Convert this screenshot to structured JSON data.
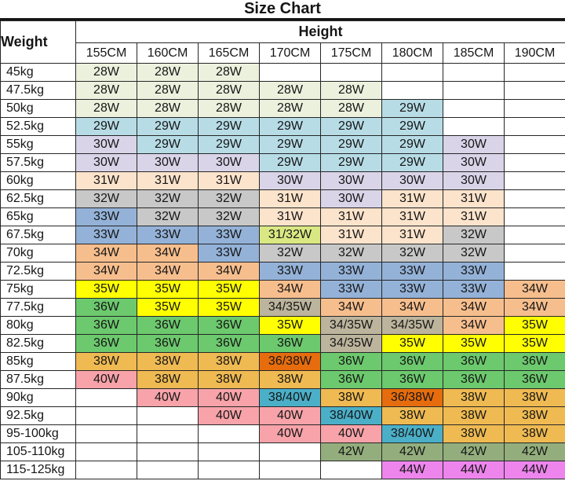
{
  "title": "Size Chart",
  "palette": {
    "cream": "#ECF1DE",
    "lightblue": "#B7DCE6",
    "lavender": "#D9D4E8",
    "peach": "#FCE3CB",
    "gray": "#C8C8C8",
    "steelblue": "#94B2D8",
    "orange": "#F7BE8D",
    "yellow": "#FFFF00",
    "yellowgreen": "#D9E882",
    "tan": "#BCB49C",
    "green": "#6CC96D",
    "gold": "#EFBA52",
    "darkorange": "#E66C0D",
    "pink": "#F7A3A9",
    "teal": "#4BAFC8",
    "sage": "#93AE7C",
    "orchid": "#ED85ED"
  },
  "chart_data": {
    "type": "table",
    "title": "Size Chart",
    "row_header": "Weight",
    "col_group_header": "Height",
    "columns": [
      "155CM",
      "160CM",
      "165CM",
      "170CM",
      "175CM",
      "180CM",
      "185CM",
      "190CM"
    ],
    "rows": [
      {
        "weight": "45kg",
        "cells": [
          {
            "v": "28W",
            "c": "cream"
          },
          {
            "v": "28W",
            "c": "cream"
          },
          {
            "v": "28W",
            "c": "cream"
          },
          null,
          null,
          null,
          null,
          null
        ]
      },
      {
        "weight": "47.5kg",
        "cells": [
          {
            "v": "28W",
            "c": "cream"
          },
          {
            "v": "28W",
            "c": "cream"
          },
          {
            "v": "28W",
            "c": "cream"
          },
          {
            "v": "28W",
            "c": "cream"
          },
          {
            "v": "28W",
            "c": "cream"
          },
          null,
          null,
          null
        ]
      },
      {
        "weight": "50kg",
        "cells": [
          {
            "v": "28W",
            "c": "cream"
          },
          {
            "v": "28W",
            "c": "cream"
          },
          {
            "v": "28W",
            "c": "cream"
          },
          {
            "v": "28W",
            "c": "cream"
          },
          {
            "v": "28W",
            "c": "cream"
          },
          {
            "v": "29W",
            "c": "lightblue"
          },
          null,
          null
        ]
      },
      {
        "weight": "52.5kg",
        "cells": [
          {
            "v": "29W",
            "c": "lightblue"
          },
          {
            "v": "29W",
            "c": "lightblue"
          },
          {
            "v": "29W",
            "c": "lightblue"
          },
          {
            "v": "29W",
            "c": "lightblue"
          },
          {
            "v": "29W",
            "c": "lightblue"
          },
          {
            "v": "29W",
            "c": "lightblue"
          },
          null,
          null
        ]
      },
      {
        "weight": "55kg",
        "cells": [
          {
            "v": "30W",
            "c": "lavender"
          },
          {
            "v": "29W",
            "c": "lightblue"
          },
          {
            "v": "29W",
            "c": "lightblue"
          },
          {
            "v": "29W",
            "c": "lightblue"
          },
          {
            "v": "29W",
            "c": "lightblue"
          },
          {
            "v": "29W",
            "c": "lightblue"
          },
          {
            "v": "30W",
            "c": "lavender"
          },
          null
        ]
      },
      {
        "weight": "57.5kg",
        "cells": [
          {
            "v": "30W",
            "c": "lavender"
          },
          {
            "v": "30W",
            "c": "lavender"
          },
          {
            "v": "30W",
            "c": "lavender"
          },
          {
            "v": "29W",
            "c": "lightblue"
          },
          {
            "v": "29W",
            "c": "lightblue"
          },
          {
            "v": "29W",
            "c": "lightblue"
          },
          {
            "v": "30W",
            "c": "lavender"
          },
          null
        ]
      },
      {
        "weight": "60kg",
        "cells": [
          {
            "v": "31W",
            "c": "peach"
          },
          {
            "v": "31W",
            "c": "peach"
          },
          {
            "v": "31W",
            "c": "peach"
          },
          {
            "v": "30W",
            "c": "lavender"
          },
          {
            "v": "30W",
            "c": "lavender"
          },
          {
            "v": "30W",
            "c": "lavender"
          },
          {
            "v": "30W",
            "c": "lavender"
          },
          null
        ]
      },
      {
        "weight": "62.5kg",
        "cells": [
          {
            "v": "32W",
            "c": "gray"
          },
          {
            "v": "32W",
            "c": "gray"
          },
          {
            "v": "32W",
            "c": "gray"
          },
          {
            "v": "31W",
            "c": "peach"
          },
          {
            "v": "30W",
            "c": "lavender"
          },
          {
            "v": "31W",
            "c": "peach"
          },
          {
            "v": "31W",
            "c": "peach"
          },
          null
        ]
      },
      {
        "weight": "65kg",
        "cells": [
          {
            "v": "33W",
            "c": "steelblue"
          },
          {
            "v": "32W",
            "c": "gray"
          },
          {
            "v": "32W",
            "c": "gray"
          },
          {
            "v": "31W",
            "c": "peach"
          },
          {
            "v": "31W",
            "c": "peach"
          },
          {
            "v": "31W",
            "c": "peach"
          },
          {
            "v": "31W",
            "c": "peach"
          },
          null
        ]
      },
      {
        "weight": "67.5kg",
        "cells": [
          {
            "v": "33W",
            "c": "steelblue"
          },
          {
            "v": "33W",
            "c": "steelblue"
          },
          {
            "v": "33W",
            "c": "steelblue"
          },
          {
            "v": "31/32W",
            "c": "yellowgreen"
          },
          {
            "v": "31W",
            "c": "peach"
          },
          {
            "v": "31W",
            "c": "peach"
          },
          {
            "v": "32W",
            "c": "gray"
          },
          null
        ]
      },
      {
        "weight": "70kg",
        "cells": [
          {
            "v": "34W",
            "c": "orange"
          },
          {
            "v": "34W",
            "c": "orange"
          },
          {
            "v": "33W",
            "c": "steelblue"
          },
          {
            "v": "32W",
            "c": "gray"
          },
          {
            "v": "32W",
            "c": "gray"
          },
          {
            "v": "32W",
            "c": "gray"
          },
          {
            "v": "32W",
            "c": "gray"
          },
          null
        ]
      },
      {
        "weight": "72.5kg",
        "cells": [
          {
            "v": "34W",
            "c": "orange"
          },
          {
            "v": "34W",
            "c": "orange"
          },
          {
            "v": "34W",
            "c": "orange"
          },
          {
            "v": "33W",
            "c": "steelblue"
          },
          {
            "v": "33W",
            "c": "steelblue"
          },
          {
            "v": "33W",
            "c": "steelblue"
          },
          {
            "v": "33W",
            "c": "steelblue"
          },
          null
        ]
      },
      {
        "weight": "75kg",
        "cells": [
          {
            "v": "35W",
            "c": "yellow"
          },
          {
            "v": "35W",
            "c": "yellow"
          },
          {
            "v": "35W",
            "c": "yellow"
          },
          {
            "v": "34W",
            "c": "orange"
          },
          {
            "v": "33W",
            "c": "steelblue"
          },
          {
            "v": "33W",
            "c": "steelblue"
          },
          {
            "v": "33W",
            "c": "steelblue"
          },
          {
            "v": "34W",
            "c": "orange"
          }
        ]
      },
      {
        "weight": "77.5kg",
        "cells": [
          {
            "v": "36W",
            "c": "green"
          },
          {
            "v": "35W",
            "c": "yellow"
          },
          {
            "v": "35W",
            "c": "yellow"
          },
          {
            "v": "34/35W",
            "c": "tan"
          },
          {
            "v": "34W",
            "c": "orange"
          },
          {
            "v": "34W",
            "c": "orange"
          },
          {
            "v": "34W",
            "c": "orange"
          },
          {
            "v": "34W",
            "c": "orange"
          }
        ]
      },
      {
        "weight": "80kg",
        "cells": [
          {
            "v": "36W",
            "c": "green"
          },
          {
            "v": "36W",
            "c": "green"
          },
          {
            "v": "36W",
            "c": "green"
          },
          {
            "v": "35W",
            "c": "yellow"
          },
          {
            "v": "34/35W",
            "c": "tan"
          },
          {
            "v": "34/35W",
            "c": "tan"
          },
          {
            "v": "34W",
            "c": "orange"
          },
          {
            "v": "35W",
            "c": "yellow"
          }
        ]
      },
      {
        "weight": "82.5kg",
        "cells": [
          {
            "v": "36W",
            "c": "green"
          },
          {
            "v": "36W",
            "c": "green"
          },
          {
            "v": "36W",
            "c": "green"
          },
          {
            "v": "36W",
            "c": "green"
          },
          {
            "v": "34/35W",
            "c": "tan"
          },
          {
            "v": "35W",
            "c": "yellow"
          },
          {
            "v": "35W",
            "c": "yellow"
          },
          {
            "v": "35W",
            "c": "yellow"
          }
        ]
      },
      {
        "weight": "85kg",
        "cells": [
          {
            "v": "38W",
            "c": "gold"
          },
          {
            "v": "38W",
            "c": "gold"
          },
          {
            "v": "38W",
            "c": "gold"
          },
          {
            "v": "36/38W",
            "c": "darkorange"
          },
          {
            "v": "36W",
            "c": "green"
          },
          {
            "v": "36W",
            "c": "green"
          },
          {
            "v": "36W",
            "c": "green"
          },
          {
            "v": "36W",
            "c": "green"
          }
        ]
      },
      {
        "weight": "87.5kg",
        "cells": [
          {
            "v": "40W",
            "c": "pink"
          },
          {
            "v": "38W",
            "c": "gold"
          },
          {
            "v": "38W",
            "c": "gold"
          },
          {
            "v": "38W",
            "c": "gold"
          },
          {
            "v": "36W",
            "c": "green"
          },
          {
            "v": "36W",
            "c": "green"
          },
          {
            "v": "36W",
            "c": "green"
          },
          {
            "v": "36W",
            "c": "green"
          }
        ]
      },
      {
        "weight": "90kg",
        "cells": [
          null,
          {
            "v": "40W",
            "c": "pink"
          },
          {
            "v": "40W",
            "c": "pink"
          },
          {
            "v": "38/40W",
            "c": "teal"
          },
          {
            "v": "38W",
            "c": "gold"
          },
          {
            "v": "36/38W",
            "c": "darkorange"
          },
          {
            "v": "38W",
            "c": "gold"
          },
          {
            "v": "38W",
            "c": "gold"
          }
        ]
      },
      {
        "weight": "92.5kg",
        "cells": [
          null,
          null,
          {
            "v": "40W",
            "c": "pink"
          },
          {
            "v": "40W",
            "c": "pink"
          },
          {
            "v": "38/40W",
            "c": "teal"
          },
          {
            "v": "38W",
            "c": "gold"
          },
          {
            "v": "38W",
            "c": "gold"
          },
          {
            "v": "38W",
            "c": "gold"
          }
        ]
      },
      {
        "weight": "95-100kg",
        "cells": [
          null,
          null,
          null,
          {
            "v": "40W",
            "c": "pink"
          },
          {
            "v": "40W",
            "c": "pink"
          },
          {
            "v": "38/40W",
            "c": "teal"
          },
          {
            "v": "38W",
            "c": "gold"
          },
          {
            "v": "38W",
            "c": "gold"
          }
        ]
      },
      {
        "weight": "105-110kg",
        "cells": [
          null,
          null,
          null,
          null,
          {
            "v": "42W",
            "c": "sage"
          },
          {
            "v": "42W",
            "c": "sage"
          },
          {
            "v": "42W",
            "c": "sage"
          },
          {
            "v": "42W",
            "c": "sage"
          }
        ]
      },
      {
        "weight": "115-125kg",
        "cells": [
          null,
          null,
          null,
          null,
          null,
          {
            "v": "44W",
            "c": "orchid"
          },
          {
            "v": "44W",
            "c": "orchid"
          },
          {
            "v": "44W",
            "c": "orchid"
          }
        ]
      }
    ]
  }
}
